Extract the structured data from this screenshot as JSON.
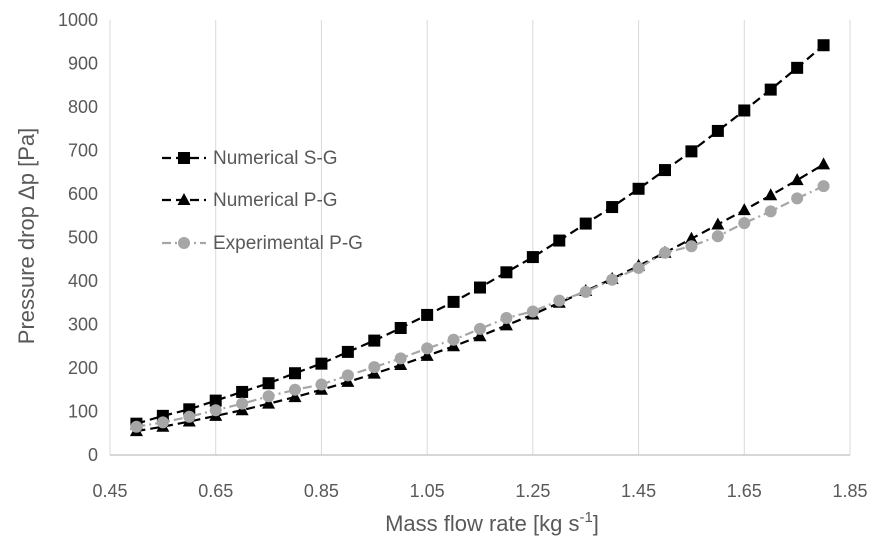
{
  "chart_data": {
    "type": "line",
    "xlabel": "Mass flow rate [kg s",
    "xlabel_superscript": "-1",
    "xlabel_suffix": "]",
    "ylabel": "Pressure drop Δp [Pa]",
    "xlim": [
      0.45,
      1.85
    ],
    "ylim": [
      0,
      1000
    ],
    "xticks": [
      "0.45",
      "0.65",
      "0.85",
      "1.05",
      "1.25",
      "1.45",
      "1.65",
      "1.85"
    ],
    "xtick_values": [
      0.45,
      0.65,
      0.85,
      1.05,
      1.25,
      1.45,
      1.65,
      1.85
    ],
    "yticks": [
      "0",
      "100",
      "200",
      "300",
      "400",
      "500",
      "600",
      "700",
      "800",
      "900",
      "1000"
    ],
    "ytick_values": [
      0,
      100,
      200,
      300,
      400,
      500,
      600,
      700,
      800,
      900,
      1000
    ],
    "grid": "vertical",
    "legend_position": "left",
    "x": [
      0.5,
      0.55,
      0.6,
      0.65,
      0.7,
      0.75,
      0.8,
      0.85,
      0.9,
      0.95,
      1.0,
      1.05,
      1.1,
      1.15,
      1.2,
      1.25,
      1.3,
      1.35,
      1.4,
      1.45,
      1.5,
      1.55,
      1.6,
      1.65,
      1.7,
      1.75,
      1.8
    ],
    "series": [
      {
        "name": "Numerical S-G",
        "color": "#000000",
        "marker": "square",
        "values": [
          72,
          90,
          105,
          125,
          145,
          165,
          188,
          210,
          237,
          263,
          292,
          322,
          352,
          385,
          420,
          455,
          493,
          532,
          570,
          612,
          655,
          698,
          745,
          792,
          840,
          890,
          942
        ]
      },
      {
        "name": "Numerical P-G",
        "color": "#000000",
        "marker": "triangle",
        "values": [
          55,
          65,
          77,
          90,
          103,
          118,
          133,
          150,
          168,
          187,
          207,
          228,
          250,
          273,
          298,
          323,
          350,
          377,
          405,
          435,
          465,
          497,
          530,
          563,
          597,
          632,
          668
        ]
      },
      {
        "name": "Experimental P-G",
        "color": "#a6a6a6",
        "marker": "circle",
        "values": [
          65,
          75,
          88,
          103,
          118,
          135,
          150,
          162,
          183,
          202,
          222,
          245,
          265,
          290,
          315,
          330,
          355,
          375,
          403,
          430,
          465,
          480,
          503,
          533,
          560,
          590,
          618
        ]
      }
    ]
  }
}
